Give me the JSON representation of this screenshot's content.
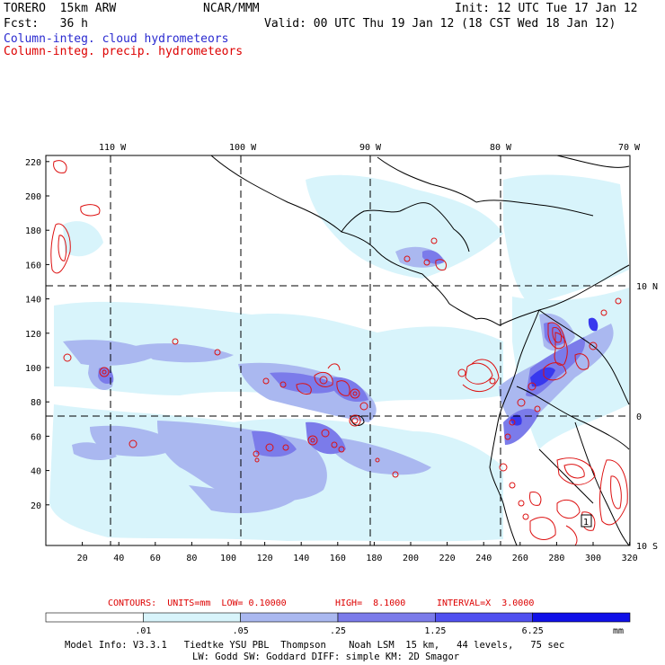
{
  "header": {
    "model": "TORERO  15km ARW",
    "org": "NCAR/MMM",
    "init": "Init: 12 UTC Tue 17 Jan 12",
    "fcst": "Fcst:   36 h",
    "valid": "Valid: 00 UTC Thu 19 Jan 12 (18 CST Wed 18 Jan 12)",
    "field1": "Column-integ. cloud hydrometeors",
    "field2": "Column-integ. precip. hydrometeors"
  },
  "axes": {
    "top_labels": [
      "110 W",
      "100 W",
      "90 W",
      "80 W",
      "70 W"
    ],
    "right_labels": [
      "10 N",
      "0",
      "10 S"
    ],
    "x_ticks": [
      "20",
      "40",
      "60",
      "80",
      "100",
      "120",
      "140",
      "160",
      "180",
      "200",
      "220",
      "240",
      "260",
      "280",
      "300",
      "320"
    ],
    "y_ticks": [
      "220",
      "200",
      "180",
      "160",
      "140",
      "120",
      "100",
      "80",
      "60",
      "40",
      "20"
    ]
  },
  "contour_info": {
    "contours": "CONTOURS:  UNITS=mm  LOW= 0.10000",
    "high": "HIGH=  8.1000",
    "interval": "INTERVAL=X  3.0000"
  },
  "colorbar": {
    "labels": [
      ".01",
      ".05",
      ".25",
      "1.25",
      "6.25"
    ],
    "unit": "mm",
    "colors": [
      "#ffffff",
      "#d8f4fb",
      "#aab8f0",
      "#7b7bea",
      "#5050f0",
      "#1010e8"
    ]
  },
  "footer": {
    "line1": "Model Info: V3.3.1   Tiedtke YSU PBL  Thompson    Noah LSM  15 km,   44 levels,   75 sec",
    "line2": "LW: Godd SW: Goddard DIFF: simple KM: 2D Smagor"
  },
  "contour_labels": [
    "1"
  ]
}
